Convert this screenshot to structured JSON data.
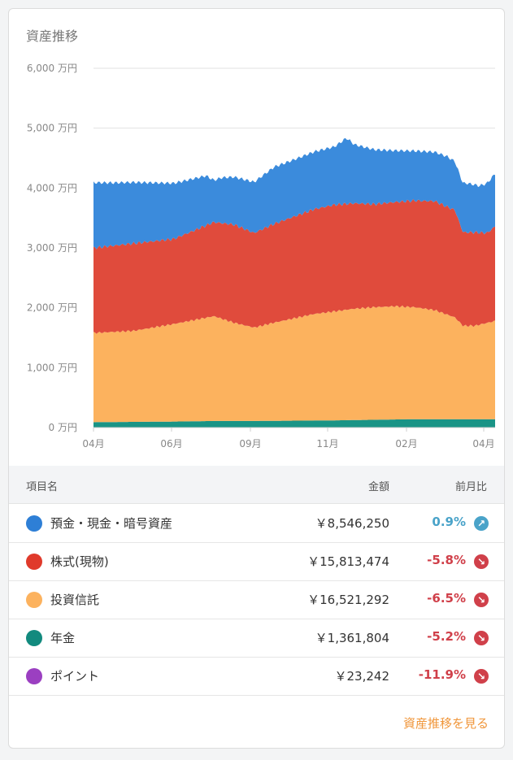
{
  "card": {
    "title": "資産推移"
  },
  "chart_data": {
    "type": "area",
    "stacked": true,
    "yunit": "万円",
    "ylim": [
      0,
      6000
    ],
    "yticks": [
      "0 万円",
      "1,000 万円",
      "2,000 万円",
      "3,000 万円",
      "4,000 万円",
      "5,000 万円",
      "6,000 万円"
    ],
    "xticks": [
      "04月",
      "06月",
      "09月",
      "11月",
      "02月",
      "04月"
    ],
    "grid": true,
    "series": [
      {
        "key": "pension",
        "color": "#1a9486",
        "x": [
          0,
          10,
          20,
          30,
          40,
          50,
          60,
          70,
          80,
          90,
          100
        ],
        "values": [
          90,
          95,
          100,
          110,
          110,
          115,
          120,
          130,
          140,
          140,
          140
        ]
      },
      {
        "key": "funds",
        "color": "#fcb25e",
        "x": [
          0,
          10,
          20,
          30,
          35,
          40,
          45,
          50,
          55,
          60,
          65,
          70,
          75,
          80,
          85,
          90,
          92,
          95,
          100
        ],
        "values": [
          1490,
          1520,
          1630,
          1750,
          1640,
          1560,
          1640,
          1710,
          1780,
          1820,
          1860,
          1880,
          1890,
          1870,
          1820,
          1700,
          1560,
          1560,
          1640
        ]
      },
      {
        "key": "stocks",
        "color": "#e04b3c",
        "x": [
          0,
          10,
          20,
          30,
          35,
          40,
          45,
          50,
          55,
          60,
          65,
          70,
          75,
          80,
          85,
          88,
          90,
          92,
          95,
          98,
          100
        ],
        "values": [
          1420,
          1460,
          1420,
          1570,
          1640,
          1580,
          1650,
          1700,
          1750,
          1780,
          1760,
          1720,
          1740,
          1780,
          1820,
          1800,
          1790,
          1560,
          1560,
          1500,
          1580
        ]
      },
      {
        "key": "deposits",
        "color": "#3b8bdc",
        "x": [
          0,
          5,
          10,
          20,
          28,
          30,
          32,
          40,
          45,
          50,
          55,
          60,
          63,
          65,
          70,
          75,
          80,
          85,
          88,
          90,
          93,
          96,
          100
        ],
        "values": [
          1090,
          1050,
          1020,
          930,
          830,
          700,
          760,
          850,
          950,
          950,
          960,
          970,
          1100,
          980,
          910,
          860,
          830,
          820,
          840,
          810,
          820,
          780,
          880
        ]
      }
    ]
  },
  "table": {
    "headers": {
      "name": "項目名",
      "amount": "金額",
      "change": "前月比"
    },
    "rows": [
      {
        "name": "預金・現金・暗号資産",
        "amount": "￥8,546,250",
        "change": "0.9%",
        "color": "#2e7fd6",
        "trend": "up"
      },
      {
        "name": "株式(現物)",
        "amount": "￥15,813,474",
        "change": "-5.8%",
        "color": "#e03a2b",
        "trend": "down"
      },
      {
        "name": "投資信託",
        "amount": "￥16,521,292",
        "change": "-6.5%",
        "color": "#fcb25e",
        "trend": "down"
      },
      {
        "name": "年金",
        "amount": "￥1,361,804",
        "change": "-5.2%",
        "color": "#128a7e",
        "trend": "down"
      },
      {
        "name": "ポイント",
        "amount": "￥23,242",
        "change": "-11.9%",
        "color": "#9b3fc1",
        "trend": "down"
      }
    ],
    "colors": {
      "up": "#4aa3c9",
      "down": "#d0404a"
    }
  },
  "footer": {
    "link_label": "資産推移を見る"
  }
}
